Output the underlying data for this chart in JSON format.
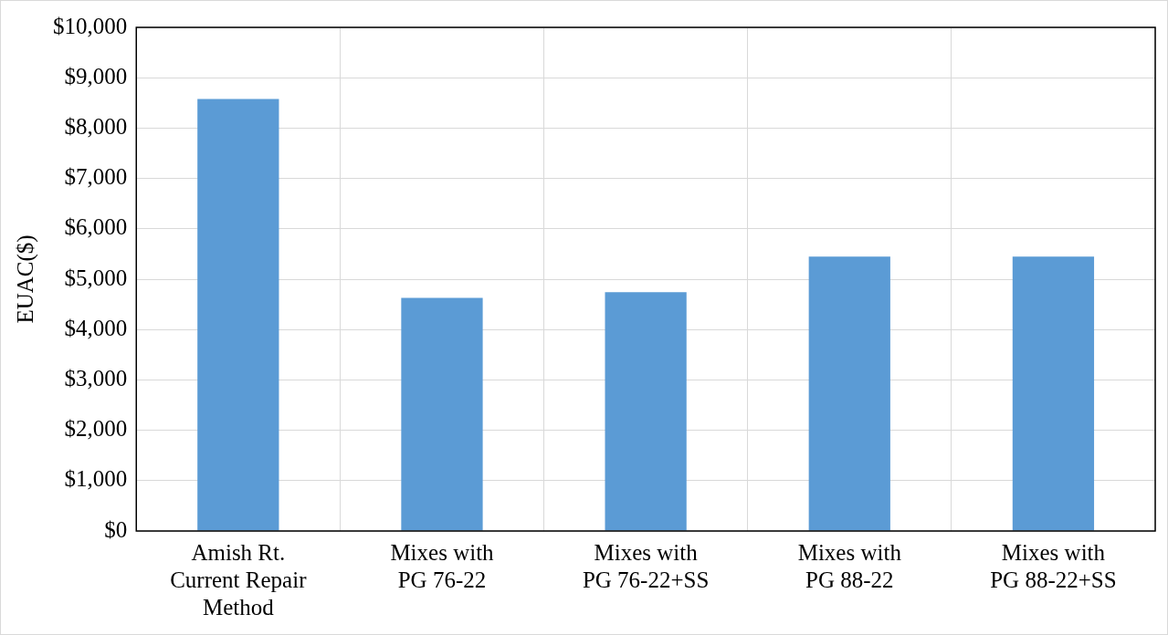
{
  "chart_data": {
    "type": "bar",
    "ylabel": "EUAC($)",
    "categories": [
      "Amish Rt.\nCurrent Repair\nMethod",
      "Mixes with\nPG 76-22",
      "Mixes with\nPG 76-22+SS",
      "Mixes with\nPG 88-22",
      "Mixes with\nPG 88-22+SS"
    ],
    "values": [
      8580,
      4630,
      4740,
      5450,
      5450
    ],
    "color": "#5b9bd5",
    "ylim": [
      0,
      10000
    ],
    "yticks": [
      {
        "value": 0,
        "label": "$0"
      },
      {
        "value": 1000,
        "label": "$1,000"
      },
      {
        "value": 2000,
        "label": "$2,000"
      },
      {
        "value": 3000,
        "label": "$3,000"
      },
      {
        "value": 4000,
        "label": "$4,000"
      },
      {
        "value": 5000,
        "label": "$5,000"
      },
      {
        "value": 6000,
        "label": "$6,000"
      },
      {
        "value": 7000,
        "label": "$7,000"
      },
      {
        "value": 8000,
        "label": "$8,000"
      },
      {
        "value": 9000,
        "label": "$9,000"
      },
      {
        "value": 10000,
        "label": "$10,000"
      }
    ],
    "grid": true
  }
}
